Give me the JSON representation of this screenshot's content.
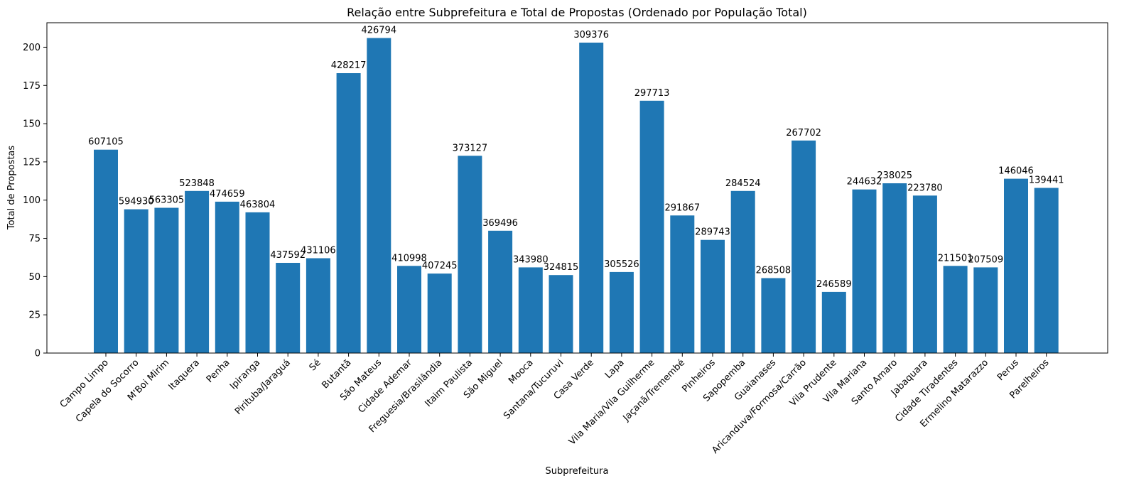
{
  "chart_data": {
    "type": "bar",
    "title": "Relação entre Subprefeitura e Total de Propostas (Ordenado por População Total)",
    "xlabel": "Subprefeitura",
    "ylabel": "Total de Propostas",
    "ylim": [
      0,
      216
    ],
    "yticks": [
      0,
      25,
      50,
      75,
      100,
      125,
      150,
      175,
      200
    ],
    "grid": false,
    "bar_color": "#1f77b4",
    "categories": [
      "Campo Limpo",
      "Capela do Socorro",
      "M'Boi Mirim",
      "Itaquera",
      "Penha",
      "Ipiranga",
      "Pirituba/Jaraguá",
      "Sé",
      "Butantã",
      "São Mateus",
      "Cidade Ademar",
      "Freguesia/Brasilândia",
      "Itaim Paulista",
      "São Miguel",
      "Mooca",
      "Santana/Tucuruvi",
      "Casa Verde",
      "Lapa",
      "Vila Maria/Vila Guilherme",
      "Jaçanã/Tremembé",
      "Pinheiros",
      "Sapopemba",
      "Guaianases",
      "Aricanduva/Formosa/Carrão",
      "Vila Prudente",
      "Vila Mariana",
      "Santo Amaro",
      "Jabaquara",
      "Cidade Tiradentes",
      "Ermelino Matarazzo",
      "Perus",
      "Parelheiros"
    ],
    "values": [
      133,
      94,
      95,
      106,
      99,
      92,
      59,
      62,
      183,
      206,
      57,
      52,
      129,
      80,
      56,
      51,
      203,
      53,
      165,
      90,
      74,
      106,
      49,
      139,
      40,
      107,
      111,
      103,
      57,
      56,
      114,
      108
    ],
    "data_labels": [
      "607105",
      "594930",
      "563305",
      "523848",
      "474659",
      "463804",
      "437592",
      "431106",
      "428217",
      "426794",
      "410998",
      "407245",
      "373127",
      "369496",
      "343980",
      "324815",
      "309376",
      "305526",
      "297713",
      "291867",
      "289743",
      "284524",
      "268508",
      "267702",
      "246589",
      "244632",
      "238025",
      "223780",
      "211501",
      "207509",
      "146046",
      "139441"
    ]
  }
}
